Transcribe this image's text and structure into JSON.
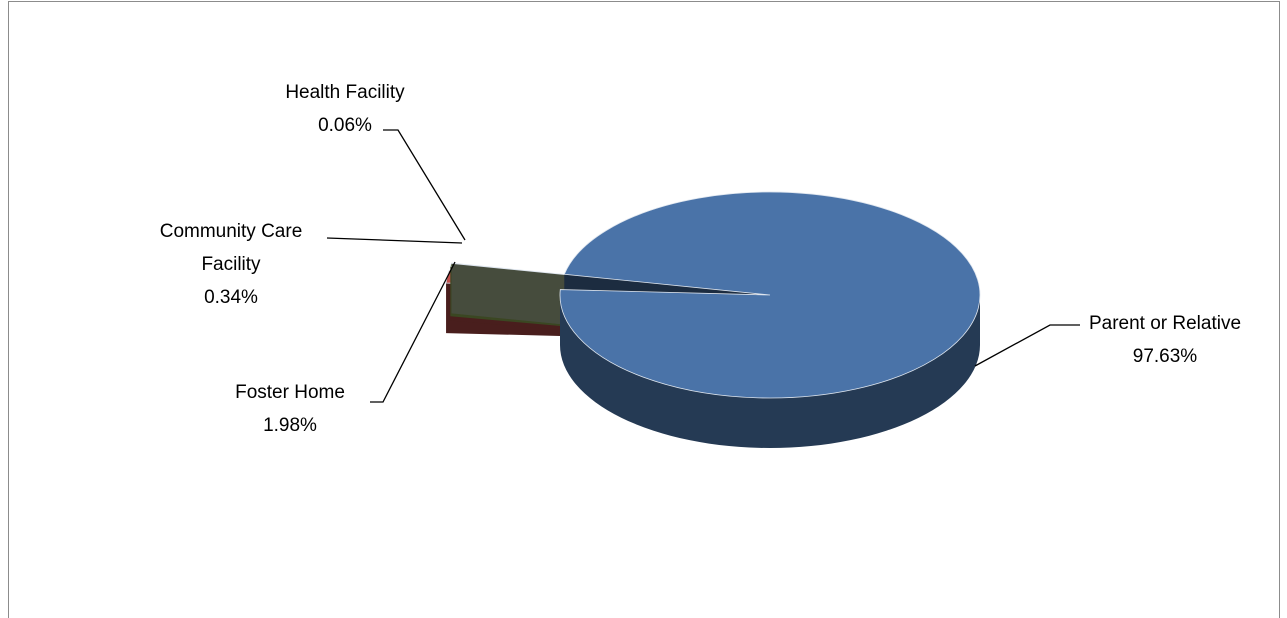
{
  "chart_data": {
    "type": "pie3d",
    "categories": [
      "Parent or Relative",
      "Foster Home",
      "Community Care Facility",
      "Health Facility"
    ],
    "values": [
      97.63,
      1.98,
      0.34,
      0.06
    ],
    "value_labels": [
      "97.63%",
      "1.98%",
      "0.34%",
      "0.06%"
    ],
    "colors": [
      "#4a73a8",
      "#c0504d",
      "#9bbb59",
      "#b9c9a0"
    ],
    "exploded": [
      false,
      true,
      true,
      true
    ]
  }
}
